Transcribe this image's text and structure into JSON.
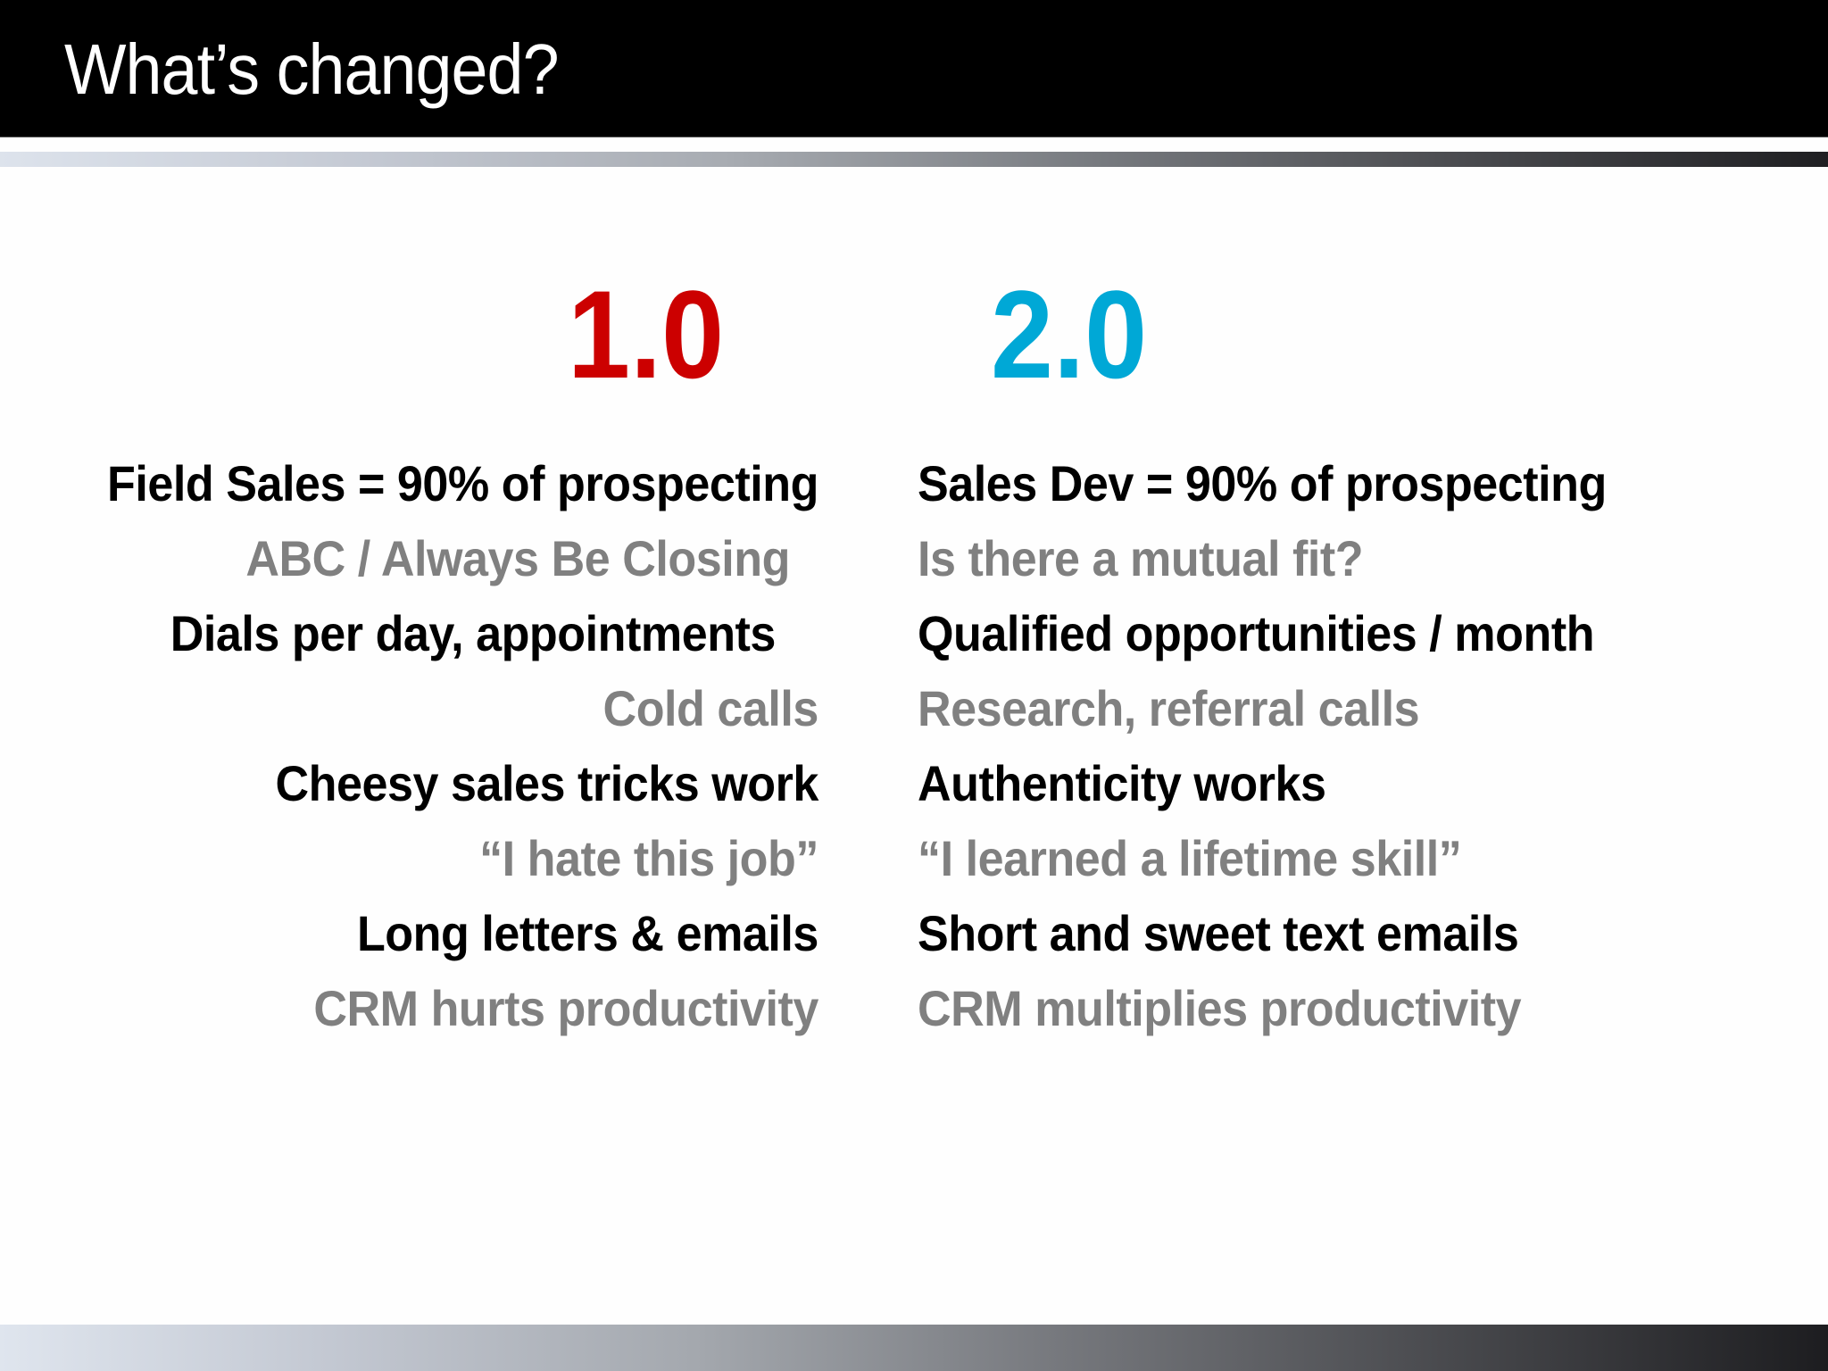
{
  "header": {
    "title": "What’s changed?"
  },
  "versions": {
    "old": {
      "label": "1.0",
      "color": "#cc0000"
    },
    "new": {
      "label": "2.0",
      "color": "#00a8d6"
    }
  },
  "comparison": {
    "old_column": [
      {
        "text": "Field Sales = 90% of prospecting",
        "style": "dark"
      },
      {
        "text": "ABC / Always Be Closing",
        "style": "grey"
      },
      {
        "text": "Dials per day, appointments",
        "style": "dark"
      },
      {
        "text": "Cold calls",
        "style": "grey"
      },
      {
        "text": "Cheesy sales tricks work",
        "style": "dark"
      },
      {
        "text": "“I hate this job”",
        "style": "grey"
      },
      {
        "text": "Long letters & emails",
        "style": "dark"
      },
      {
        "text": "CRM hurts productivity",
        "style": "grey"
      }
    ],
    "new_column": [
      {
        "text": "Sales Dev = 90% of prospecting",
        "style": "dark"
      },
      {
        "text": "Is there a mutual fit?",
        "style": "grey"
      },
      {
        "text": "Qualified opportunities / month",
        "style": "dark"
      },
      {
        "text": "Research, referral calls",
        "style": "grey"
      },
      {
        "text": "Authenticity works",
        "style": "dark"
      },
      {
        "text": "“I learned a lifetime skill”",
        "style": "grey"
      },
      {
        "text": "Short and sweet text emails",
        "style": "dark"
      },
      {
        "text": "CRM multiplies productivity",
        "style": "grey"
      }
    ]
  },
  "colors": {
    "header_bg": "#000000",
    "title_text": "#ffffff",
    "primary_text": "#000000",
    "secondary_text": "#808080",
    "old_accent": "#cc0000",
    "new_accent": "#00a8d6"
  }
}
